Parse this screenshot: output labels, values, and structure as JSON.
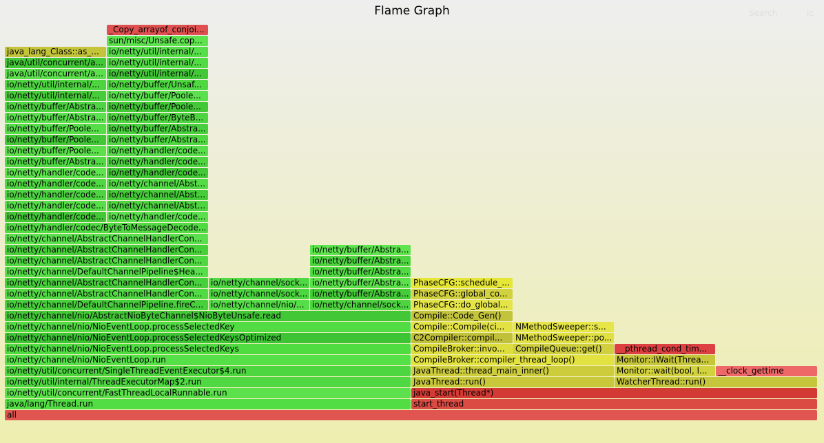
{
  "header": {
    "title": "Flame Graph",
    "search_label": "Search",
    "ic_label": "ic"
  },
  "frames": [
    {
      "row": 0,
      "start": 7,
      "end": 1187,
      "label": "all",
      "color": "#e05550"
    },
    {
      "row": 1,
      "start": 7,
      "end": 597,
      "label": "java/lang/Thread.run",
      "color": "#52dd44"
    },
    {
      "row": 1,
      "start": 597,
      "end": 1187,
      "label": "start_thread",
      "color": "#dc4a44"
    },
    {
      "row": 2,
      "start": 7,
      "end": 597,
      "label": "io/netty/util/concurrent/FastThreadLocalRunnable.run",
      "color": "#5ce04c"
    },
    {
      "row": 2,
      "start": 597,
      "end": 1187,
      "label": "java_start(Thread*)",
      "color": "#d43a34"
    },
    {
      "row": 3,
      "start": 7,
      "end": 597,
      "label": "io/netty/util/internal/ThreadExecutorMap$2.run",
      "color": "#50d842"
    },
    {
      "row": 3,
      "start": 597,
      "end": 892,
      "label": "JavaThread::run()",
      "color": "#c8c83a"
    },
    {
      "row": 3,
      "start": 892,
      "end": 1187,
      "label": "WatcherThread::run()",
      "color": "#c6c63c"
    },
    {
      "row": 4,
      "start": 7,
      "end": 597,
      "label": "io/netty/util/concurrent/SingleThreadEventExecutor$4.run",
      "color": "#4ed640"
    },
    {
      "row": 4,
      "start": 597,
      "end": 892,
      "label": "JavaThread::thread_main_inner()",
      "color": "#cccc3c"
    },
    {
      "row": 4,
      "start": 892,
      "end": 1039,
      "label": "Monitor::wait(bool, l...",
      "color": "#d2d23e"
    },
    {
      "row": 4,
      "start": 1039,
      "end": 1187,
      "label": "__clock_gettime",
      "color": "#ee6868"
    },
    {
      "row": 5,
      "start": 7,
      "end": 597,
      "label": "io/netty/channel/nio/NioEventLoop.run",
      "color": "#56e048"
    },
    {
      "row": 5,
      "start": 597,
      "end": 892,
      "label": "CompileBroker::compiler_thread_loop()",
      "color": "#e2e240"
    },
    {
      "row": 5,
      "start": 892,
      "end": 1039,
      "label": "Monitor::IWait(Threa...",
      "color": "#c6c63a"
    },
    {
      "row": 6,
      "start": 7,
      "end": 597,
      "label": "io/netty/channel/nio/NioEventLoop.processSelectedKeys",
      "color": "#4edc40"
    },
    {
      "row": 6,
      "start": 597,
      "end": 892,
      "label": "CompileBroker::invo...",
      "color": "#dddd3e"
    },
    {
      "row": 6,
      "start": 745,
      "end": 892,
      "label": "CompileQueue::get()",
      "color": "#cfcf40"
    },
    {
      "row": 6,
      "start": 892,
      "end": 1039,
      "label": "__pthread_cond_tim...",
      "color": "#dc4040"
    },
    {
      "row": 7,
      "start": 7,
      "end": 597,
      "label": "io/netty/channel/nio/NioEventLoop.processSelectedKeysOptimized",
      "color": "#3cc434"
    },
    {
      "row": 7,
      "start": 597,
      "end": 745,
      "label": "C2Compiler::compil...",
      "color": "#c0c03a"
    },
    {
      "row": 7,
      "start": 745,
      "end": 892,
      "label": "NMethodSweeper::po...",
      "color": "#e0e042"
    },
    {
      "row": 8,
      "start": 7,
      "end": 597,
      "label": "io/netty/channel/nio/NioEventLoop.processSelectedKey",
      "color": "#52dc44"
    },
    {
      "row": 8,
      "start": 597,
      "end": 745,
      "label": "Compile::Compile(ci...",
      "color": "#e2e244"
    },
    {
      "row": 8,
      "start": 745,
      "end": 892,
      "label": "NMethodSweeper::s...",
      "color": "#e6e648"
    },
    {
      "row": 9,
      "start": 7,
      "end": 597,
      "label": "io/netty/channel/nio/AbstractNioByteChannel$NioByteUnsafe.read",
      "color": "#42c836"
    },
    {
      "row": 9,
      "start": 597,
      "end": 745,
      "label": "Compile::Code_Gen()",
      "color": "#c4c43c"
    },
    {
      "row": 10,
      "start": 7,
      "end": 303,
      "label": "io/netty/channel/DefaultChannelPipeline.fireC...",
      "color": "#48d03c"
    },
    {
      "row": 10,
      "start": 303,
      "end": 450,
      "label": "io/netty/channel/nio/...",
      "color": "#56de48"
    },
    {
      "row": 10,
      "start": 450,
      "end": 597,
      "label": "io/netty/channel/sock...",
      "color": "#4ed440"
    },
    {
      "row": 10,
      "start": 597,
      "end": 745,
      "label": "PhaseCFG::do_global...",
      "color": "#e4e448"
    },
    {
      "row": 11,
      "start": 7,
      "end": 303,
      "label": "io/netty/channel/AbstractChannelHandlerCon...",
      "color": "#52da44"
    },
    {
      "row": 11,
      "start": 303,
      "end": 450,
      "label": "io/netty/channel/sock...",
      "color": "#4cd640"
    },
    {
      "row": 11,
      "start": 450,
      "end": 597,
      "label": "io/netty/buffer/Abstra...",
      "color": "#46cc38"
    },
    {
      "row": 11,
      "start": 597,
      "end": 745,
      "label": "PhaseCFG::global_co...",
      "color": "#d2d240"
    },
    {
      "row": 12,
      "start": 7,
      "end": 303,
      "label": "io/netty/channel/AbstractChannelHandlerCon...",
      "color": "#48d03c"
    },
    {
      "row": 12,
      "start": 303,
      "end": 450,
      "label": "io/netty/channel/sock...",
      "color": "#50d844"
    },
    {
      "row": 12,
      "start": 450,
      "end": 597,
      "label": "io/netty/buffer/Abstra...",
      "color": "#5ce04c"
    },
    {
      "row": 12,
      "start": 597,
      "end": 745,
      "label": "PhaseCFG::schedule_...",
      "color": "#e6e636"
    },
    {
      "row": 13,
      "start": 7,
      "end": 303,
      "label": "io/netty/channel/DefaultChannelPipeline$Hea...",
      "color": "#58de4a"
    },
    {
      "row": 13,
      "start": 450,
      "end": 597,
      "label": "io/netty/buffer/Abstra...",
      "color": "#52da44"
    },
    {
      "row": 14,
      "start": 7,
      "end": 303,
      "label": "io/netty/channel/AbstractChannelHandlerCon...",
      "color": "#50d842"
    },
    {
      "row": 14,
      "start": 450,
      "end": 597,
      "label": "io/netty/buffer/Abstra...",
      "color": "#4ed440"
    },
    {
      "row": 15,
      "start": 7,
      "end": 303,
      "label": "io/netty/channel/AbstractChannelHandlerCon...",
      "color": "#48d03a"
    },
    {
      "row": 15,
      "start": 450,
      "end": 597,
      "label": "io/netty/buffer/Abstra...",
      "color": "#5ee44e"
    },
    {
      "row": 16,
      "start": 7,
      "end": 303,
      "label": "io/netty/channel/AbstractChannelHandlerCon...",
      "color": "#5ae04c"
    },
    {
      "row": 17,
      "start": 7,
      "end": 303,
      "label": "io/netty/handler/codec/ByteToMessageDecode...",
      "color": "#52da44"
    },
    {
      "row": 18,
      "start": 7,
      "end": 155,
      "label": "io/netty/handler/code...",
      "color": "#42c836"
    },
    {
      "row": 18,
      "start": 155,
      "end": 303,
      "label": "io/netty/handler/code...",
      "color": "#5ae04c"
    },
    {
      "row": 19,
      "start": 7,
      "end": 155,
      "label": "io/netty/handler/code...",
      "color": "#56de48"
    },
    {
      "row": 19,
      "start": 155,
      "end": 303,
      "label": "io/netty/channel/Abst...",
      "color": "#4ed440"
    },
    {
      "row": 20,
      "start": 7,
      "end": 155,
      "label": "io/netty/handler/code...",
      "color": "#4ed442"
    },
    {
      "row": 20,
      "start": 155,
      "end": 303,
      "label": "io/netty/channel/Abst...",
      "color": "#46cc38"
    },
    {
      "row": 21,
      "start": 7,
      "end": 155,
      "label": "io/netty/handler/code...",
      "color": "#50d842"
    },
    {
      "row": 21,
      "start": 155,
      "end": 303,
      "label": "io/netty/channel/Abst...",
      "color": "#54dc46"
    },
    {
      "row": 22,
      "start": 7,
      "end": 155,
      "label": "io/netty/handler/code...",
      "color": "#5ee24e"
    },
    {
      "row": 22,
      "start": 155,
      "end": 303,
      "label": "io/netty/handler/code...",
      "color": "#42c836"
    },
    {
      "row": 23,
      "start": 7,
      "end": 155,
      "label": "io/netty/buffer/Abstra...",
      "color": "#52da44"
    },
    {
      "row": 23,
      "start": 155,
      "end": 303,
      "label": "io/netty/handler/code...",
      "color": "#4ed440"
    },
    {
      "row": 24,
      "start": 7,
      "end": 155,
      "label": "io/netty/buffer/Poole...",
      "color": "#5ce04c"
    },
    {
      "row": 24,
      "start": 155,
      "end": 303,
      "label": "io/netty/handler/code...",
      "color": "#58de4a"
    },
    {
      "row": 25,
      "start": 7,
      "end": 155,
      "label": "io/netty/buffer/Poole...",
      "color": "#42c836"
    },
    {
      "row": 25,
      "start": 155,
      "end": 303,
      "label": "io/netty/buffer/Abstra...",
      "color": "#50d842"
    },
    {
      "row": 26,
      "start": 7,
      "end": 155,
      "label": "io/netty/buffer/Poole...",
      "color": "#56de48"
    },
    {
      "row": 26,
      "start": 155,
      "end": 303,
      "label": "io/netty/buffer/Abstra...",
      "color": "#48d03c"
    },
    {
      "row": 27,
      "start": 7,
      "end": 155,
      "label": "io/netty/buffer/Abstra...",
      "color": "#5ae04c"
    },
    {
      "row": 27,
      "start": 155,
      "end": 303,
      "label": "io/netty/buffer/ByteB...",
      "color": "#4ed440"
    },
    {
      "row": 28,
      "start": 7,
      "end": 155,
      "label": "io/netty/buffer/Abstra...",
      "color": "#4ed442"
    },
    {
      "row": 28,
      "start": 155,
      "end": 303,
      "label": "io/netty/buffer/Poole...",
      "color": "#42c836"
    },
    {
      "row": 29,
      "start": 7,
      "end": 155,
      "label": "io/netty/util/internal/...",
      "color": "#46cc38"
    },
    {
      "row": 29,
      "start": 155,
      "end": 303,
      "label": "io/netty/buffer/Poole...",
      "color": "#5ae04c"
    },
    {
      "row": 30,
      "start": 7,
      "end": 155,
      "label": "io/netty/util/internal/...",
      "color": "#4ed440"
    },
    {
      "row": 30,
      "start": 155,
      "end": 303,
      "label": "io/netty/buffer/Unsaf...",
      "color": "#50d842"
    },
    {
      "row": 31,
      "start": 7,
      "end": 155,
      "label": "java/util/concurrent/a...",
      "color": "#5ce04c"
    },
    {
      "row": 31,
      "start": 155,
      "end": 303,
      "label": "io/netty/util/internal/...",
      "color": "#42c836"
    },
    {
      "row": 32,
      "start": 7,
      "end": 155,
      "label": "java/util/concurrent/a...",
      "color": "#42c836"
    },
    {
      "row": 32,
      "start": 155,
      "end": 303,
      "label": "io/netty/util/internal/...",
      "color": "#52da44"
    },
    {
      "row": 33,
      "start": 7,
      "end": 155,
      "label": "java_lang_Class::as_...",
      "color": "#c4c43a"
    },
    {
      "row": 33,
      "start": 155,
      "end": 303,
      "label": "io/netty/util/internal/...",
      "color": "#56de48"
    },
    {
      "row": 34,
      "start": 155,
      "end": 303,
      "label": "sun/misc/Unsafe.cop...",
      "color": "#5ee24e"
    },
    {
      "row": 35,
      "start": 155,
      "end": 303,
      "label": "_Copy_arrayof_conjoi...",
      "color": "#e05050"
    }
  ]
}
